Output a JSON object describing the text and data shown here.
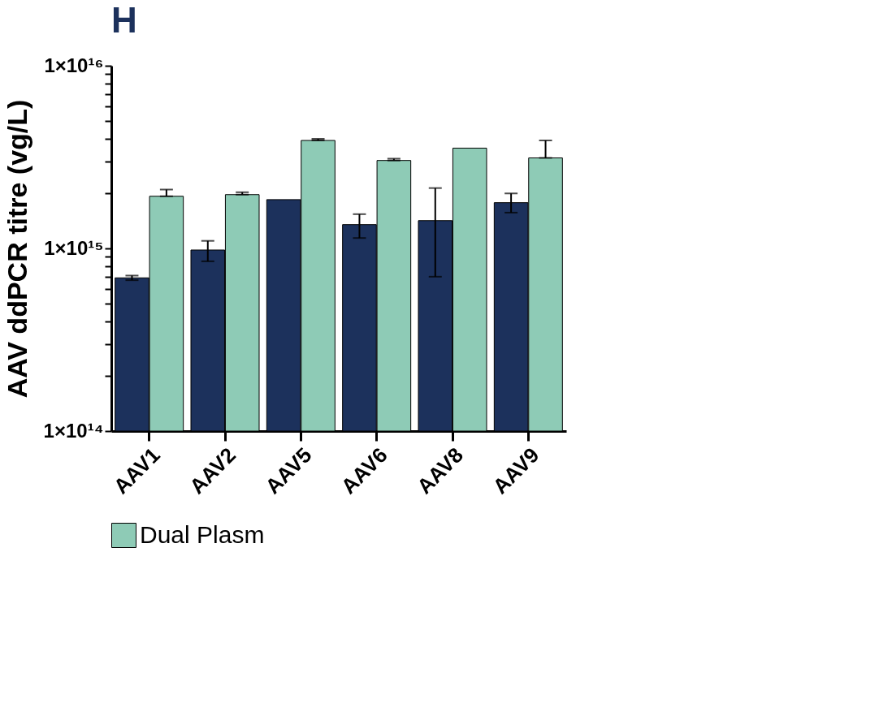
{
  "chart_data": {
    "type": "bar",
    "title": "H",
    "ylabel": "AAV ddPCR titre (vg/L)",
    "categories": [
      "AAV1",
      "AAV2",
      "AAV5",
      "AAV6",
      "AAV8",
      "AAV9"
    ],
    "series": [
      {
        "color": "#1c315c",
        "values": [
          690000000000000.0,
          980000000000000.0,
          1850000000000000.0,
          1350000000000000.0,
          1420000000000000.0,
          1780000000000000.0
        ],
        "errors": [
          [
            670000000000000.0,
            710000000000000.0
          ],
          [
            850000000000000.0,
            1100000000000000.0
          ],
          null,
          [
            1140000000000000.0,
            1540000000000000.0
          ],
          [
            700000000000000.0,
            2140000000000000.0
          ],
          [
            1570000000000000.0,
            2000000000000000.0
          ]
        ]
      },
      {
        "name": "Dual Plasm",
        "color": "#8ecbb6",
        "values": [
          1930000000000000.0,
          1970000000000000.0,
          3900000000000000.0,
          3030000000000000.0,
          3540000000000000.0,
          3130000000000000.0
        ],
        "errors": [
          [
            1930000000000000.0,
            2100000000000000.0
          ],
          [
            1970000000000000.0,
            2030000000000000.0
          ],
          [
            3900000000000000.0,
            3980000000000000.0
          ],
          [
            3030000000000000.0,
            3100000000000000.0
          ],
          null,
          [
            3130000000000000.0,
            3900000000000000.0
          ]
        ]
      }
    ],
    "log": true,
    "ylim": [
      100000000000000.0,
      1e+16
    ],
    "yticks": [
      {
        "value": 100000000000000.0,
        "label": "1×10¹⁴"
      },
      {
        "value": 200000000000000.0,
        "label": null
      },
      {
        "value": 300000000000000.0,
        "label": null
      },
      {
        "value": 400000000000000.0,
        "label": null
      },
      {
        "value": 500000000000000.0,
        "label": null
      },
      {
        "value": 600000000000000.0,
        "label": null
      },
      {
        "value": 700000000000000.0,
        "label": null
      },
      {
        "value": 800000000000000.0,
        "label": null
      },
      {
        "value": 900000000000000.0,
        "label": null
      },
      {
        "value": 1000000000000000.0,
        "label": "1×10¹⁵"
      },
      {
        "value": 2000000000000000.0,
        "label": null
      },
      {
        "value": 3000000000000000.0,
        "label": null
      },
      {
        "value": 4000000000000000.0,
        "label": null
      },
      {
        "value": 5000000000000000.0,
        "label": null
      },
      {
        "value": 6000000000000000.0,
        "label": null
      },
      {
        "value": 7000000000000000.0,
        "label": null
      },
      {
        "value": 8000000000000000.0,
        "label": null
      },
      {
        "value": 9000000000000000.0,
        "label": null
      },
      {
        "value": 1e+16,
        "label": "1×10¹⁶"
      }
    ],
    "grid": false,
    "legend": "bottom"
  }
}
